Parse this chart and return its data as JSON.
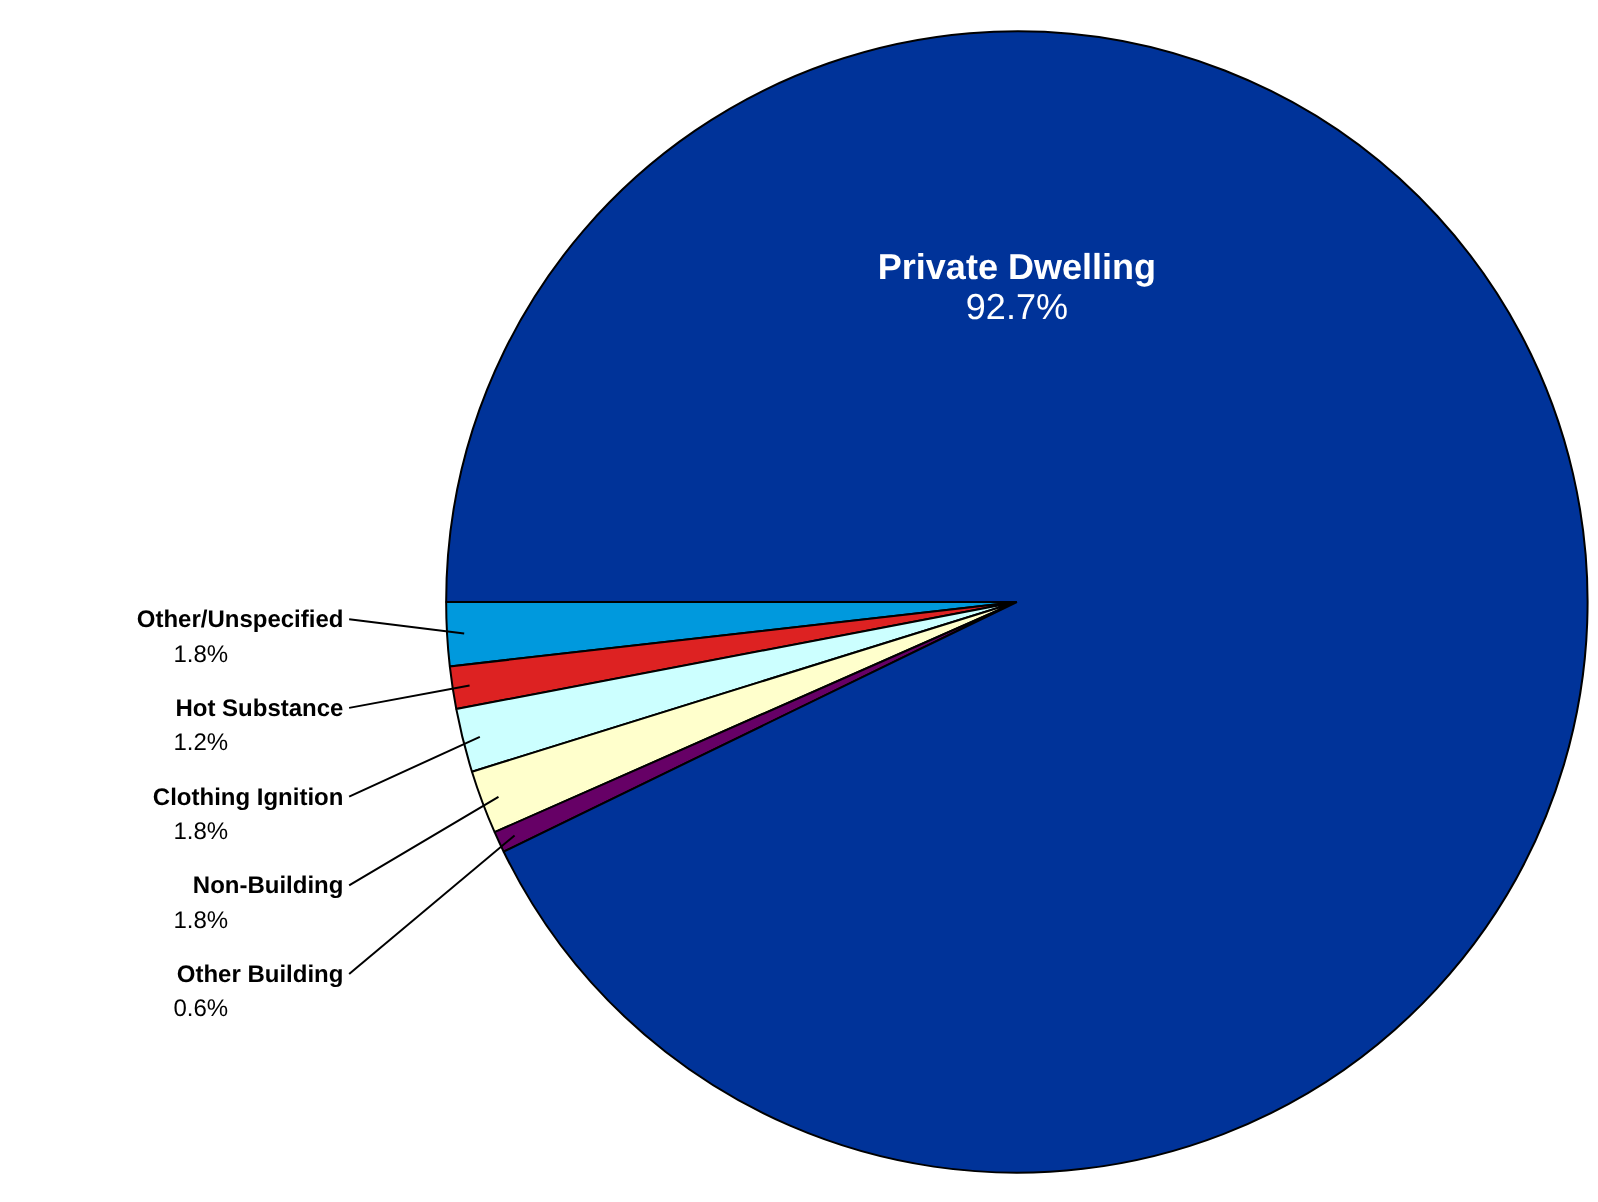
{
  "chart_data": {
    "type": "pie",
    "categories": [
      "Other/Unspecified",
      "Hot Substance",
      "Clothing Ignition",
      "Non-Building",
      "Other Building",
      "Private Dwelling"
    ],
    "values": [
      1.8,
      1.2,
      1.8,
      1.8,
      0.6,
      92.7
    ],
    "colors": [
      "#0099dd",
      "#dd2222",
      "#ccffff",
      "#ffffcc",
      "#660066",
      "#003399"
    ],
    "value_labels": [
      "1.8%",
      "1.2%",
      "1.8%",
      "1.8%",
      "0.6%",
      "92.7%"
    ]
  }
}
